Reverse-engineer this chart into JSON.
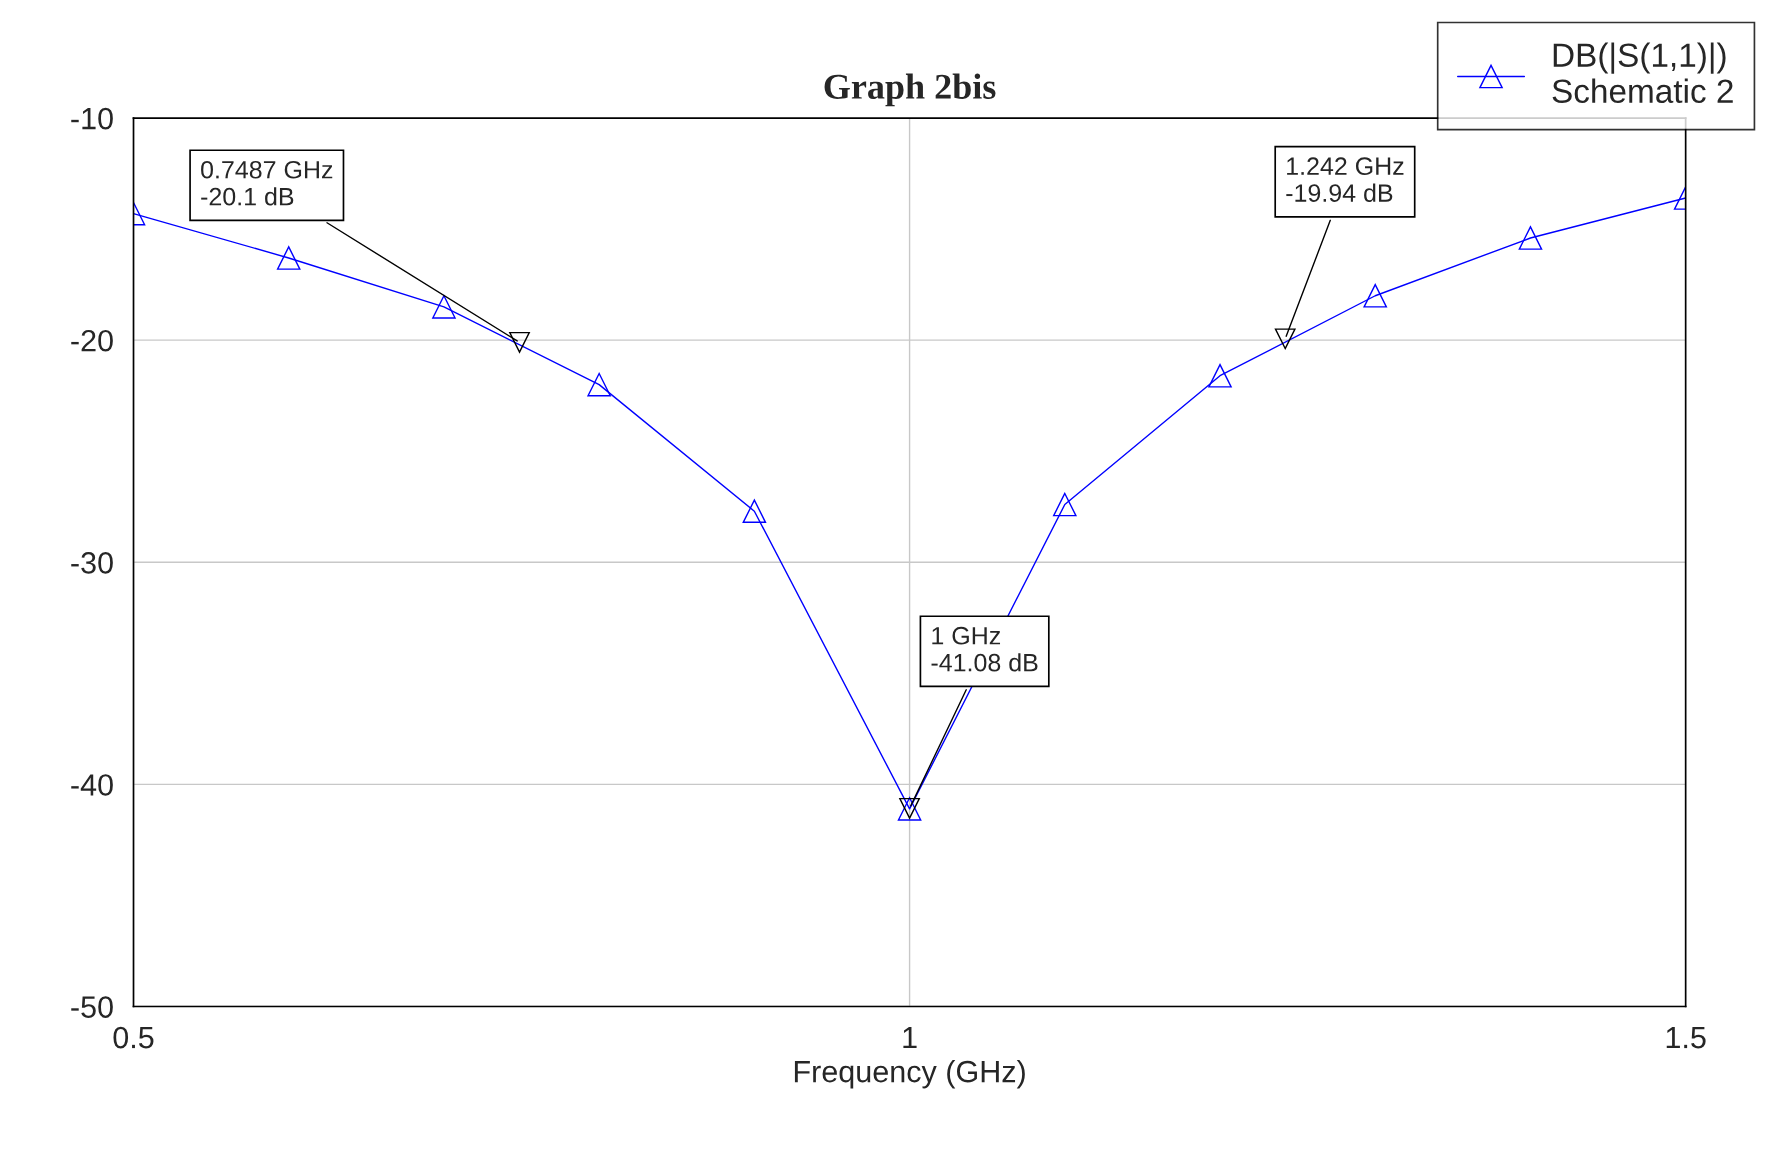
{
  "chart_data": {
    "type": "line",
    "title": "Graph 2bis",
    "xlabel": "Frequency (GHz)",
    "x": [
      0.5,
      0.6,
      0.7,
      0.8,
      0.9,
      1.0,
      1.1,
      1.2,
      1.3,
      1.4,
      1.5
    ],
    "series": [
      {
        "name": "DB(|S(1,1)|)\nSchematic 2",
        "color": "#0000ff",
        "values": [
          -14.3,
          -16.3,
          -18.5,
          -22.0,
          -27.7,
          -41.1,
          -27.4,
          -21.6,
          -18.0,
          -15.4,
          -13.6
        ]
      }
    ],
    "marker": "triangle",
    "line_style": "solid",
    "xlim": [
      0.5,
      1.5
    ],
    "xticks": [
      0.5,
      1,
      1.5
    ],
    "ylim": [
      -50,
      -10
    ],
    "yticks": [
      -10,
      -20,
      -30,
      -40,
      -50
    ],
    "grid": true,
    "legend": "top right",
    "annotations": [
      {
        "text": "0.7487 GHz\n-20.1 dB",
        "x": 0.7487,
        "y": -20.1
      },
      {
        "text": "1.242 GHz\n-19.94 dB",
        "x": 1.242,
        "y": -19.94
      },
      {
        "text": "1 GHz\n-41.08 dB",
        "x": 1,
        "y": -41.08
      }
    ]
  }
}
